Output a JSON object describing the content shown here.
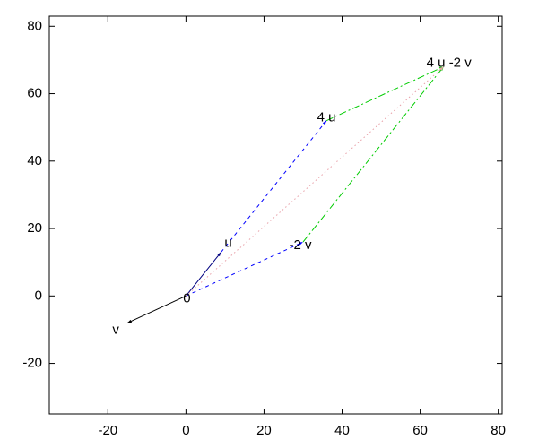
{
  "chart_data": {
    "type": "vector",
    "xlim": [
      -35,
      81
    ],
    "ylim": [
      -35,
      83
    ],
    "xticks": [
      -20,
      0,
      20,
      40,
      60,
      80
    ],
    "yticks": [
      -20,
      0,
      20,
      40,
      60,
      80
    ],
    "vectors": [
      {
        "color": "#000080",
        "dash": "solid",
        "from": [
          0,
          0
        ],
        "to": [
          9,
          13
        ]
      },
      {
        "color": "#000000",
        "dash": "solid",
        "from": [
          0,
          0
        ],
        "to": [
          -15,
          -8
        ]
      },
      {
        "color": "#0000ff",
        "dash": "dashed",
        "from": [
          9,
          13
        ],
        "to": [
          36,
          52
        ]
      },
      {
        "color": "#0000ff",
        "dash": "dashed",
        "from": [
          0,
          0
        ],
        "to": [
          30,
          16
        ]
      },
      {
        "color": "#00cc00",
        "dash": "dashdot",
        "from": [
          36,
          52
        ],
        "to": [
          66,
          68
        ]
      },
      {
        "color": "#00cc00",
        "dash": "dashdot",
        "from": [
          30,
          16
        ],
        "to": [
          66,
          68
        ]
      },
      {
        "color": "#e8a0a8",
        "dash": "dotted",
        "from": [
          0,
          0
        ],
        "to": [
          66,
          68
        ]
      }
    ],
    "points": [
      {
        "label": "0",
        "x": 0,
        "y": 0
      },
      {
        "label": "u",
        "x": 9,
        "y": 13
      },
      {
        "label": "v",
        "x": -15,
        "y": -8
      },
      {
        "label": "4 u",
        "x": 36,
        "y": 52
      },
      {
        "label": "-2 v",
        "x": 30,
        "y": 16
      },
      {
        "label": "4 u -2 v",
        "x": 66,
        "y": 68
      }
    ]
  }
}
